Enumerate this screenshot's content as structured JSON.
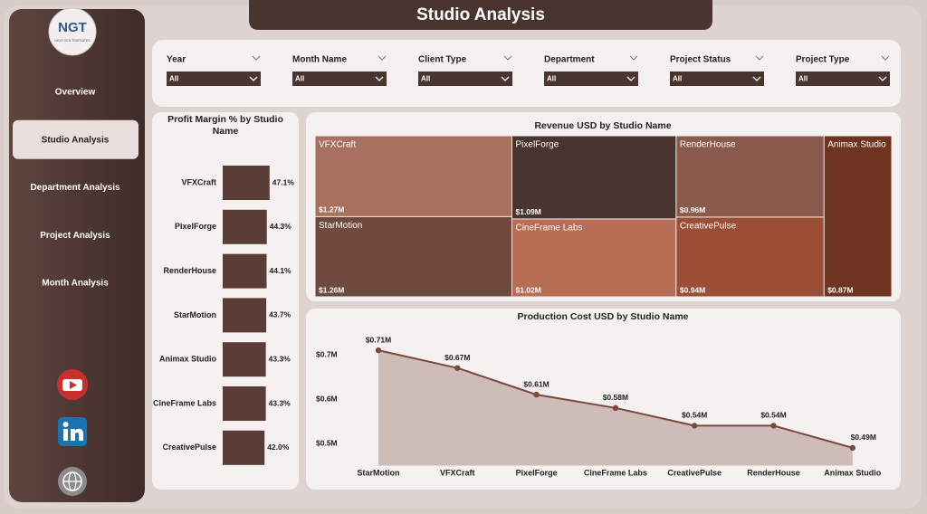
{
  "title": "Studio Analysis",
  "sidebar": {
    "logo": "NGT",
    "logo_caption": "NEXT GEN TEMPLATES",
    "menu": [
      "Overview",
      "Studio Analysis",
      "Department Analysis",
      "Project Analysis",
      "Month Analysis"
    ],
    "selected": 1
  },
  "filters": [
    {
      "label": "Year",
      "value": "All"
    },
    {
      "label": "Month Name",
      "value": "All"
    },
    {
      "label": "Client Type",
      "value": "All"
    },
    {
      "label": "Department",
      "value": "All"
    },
    {
      "label": "Project Status",
      "value": "All"
    },
    {
      "label": "Project Type",
      "value": "All"
    }
  ],
  "chart_data": [
    {
      "type": "hbar",
      "title": "Profit Margin % by Studio Name",
      "categories": [
        "VFXCraft",
        "PixelForge",
        "RenderHouse",
        "StarMotion",
        "Animax Studio",
        "CineFrame Labs",
        "CreativePulse"
      ],
      "values": [
        47.1,
        44.3,
        44.1,
        43.7,
        43.3,
        43.3,
        42.0
      ],
      "value_labels": [
        "47.1%",
        "44.3%",
        "44.1%",
        "43.7%",
        "43.3%",
        "43.3%",
        "42.0%"
      ],
      "color": "#5a3d37",
      "xlim": [
        0,
        50
      ]
    },
    {
      "type": "treemap",
      "title": "Revenue USD by Studio Name",
      "categories": [
        "VFXCraft",
        "StarMotion",
        "PixelForge",
        "CineFrame Labs",
        "RenderHouse",
        "CreativePulse",
        "Animax Studio"
      ],
      "values": [
        1.27,
        1.26,
        1.09,
        1.02,
        0.96,
        0.94,
        0.87
      ],
      "value_labels": [
        "$1.27M",
        "$1.26M",
        "$1.09M",
        "$1.02M",
        "$0.96M",
        "$0.94M",
        "$0.87M"
      ],
      "colors": [
        "#a8705f",
        "#6e4a3f",
        "#4a3430",
        "#b86d55",
        "#8a5a4c",
        "#9a4e36",
        "#6f3420"
      ]
    },
    {
      "type": "area",
      "title": "Production Cost USD by Studio Name",
      "categories": [
        "StarMotion",
        "VFXCraft",
        "PixelForge",
        "CineFrame Labs",
        "CreativePulse",
        "RenderHouse",
        "Animax Studio"
      ],
      "values": [
        0.71,
        0.67,
        0.61,
        0.58,
        0.54,
        0.54,
        0.49
      ],
      "value_labels": [
        "$0.71M",
        "$0.67M",
        "$0.61M",
        "$0.58M",
        "$0.54M",
        "$0.54M",
        "$0.49M"
      ],
      "color": "#7a4a3c",
      "fill": "#c6b3ad",
      "ylim": [
        0.45,
        0.75
      ],
      "yticks": [
        {
          "value": 0.5,
          "label": "$0.5M"
        },
        {
          "value": 0.6,
          "label": "$0.6M"
        },
        {
          "value": 0.7,
          "label": "$0.7M"
        }
      ]
    }
  ]
}
